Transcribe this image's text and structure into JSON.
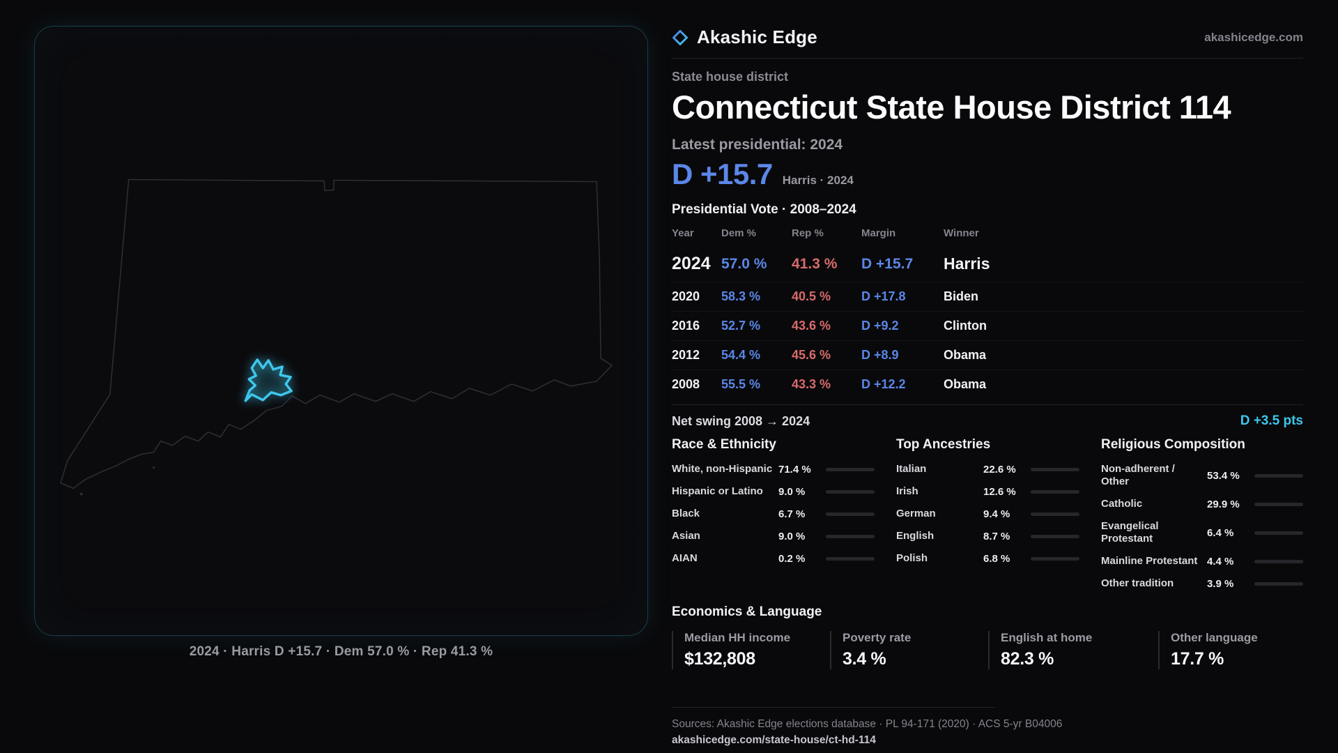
{
  "brand": {
    "name": "Akashic Edge",
    "site": "akashicedge.com"
  },
  "map": {
    "caption": "2024 · Harris D +15.7 · Dem 57.0 % · Rep 41.3 %"
  },
  "page": {
    "kicker": "State house district",
    "title": "Connecticut State House District 114"
  },
  "latest": {
    "label": "Latest presidential: 2024",
    "margin": "D +15.7",
    "sub": "Harris · 2024"
  },
  "vote_table": {
    "title": "Presidential Vote · 2008–2024",
    "columns": {
      "year": "Year",
      "dem": "Dem %",
      "rep": "Rep %",
      "margin": "Margin",
      "winner": "Winner"
    },
    "rows": [
      {
        "year": "2024",
        "dem": "57.0 %",
        "rep": "41.3 %",
        "margin": "D +15.7",
        "winner": "Harris"
      },
      {
        "year": "2020",
        "dem": "58.3 %",
        "rep": "40.5 %",
        "margin": "D +17.8",
        "winner": "Biden"
      },
      {
        "year": "2016",
        "dem": "52.7 %",
        "rep": "43.6 %",
        "margin": "D +9.2",
        "winner": "Clinton"
      },
      {
        "year": "2012",
        "dem": "54.4 %",
        "rep": "45.6 %",
        "margin": "D +8.9",
        "winner": "Obama"
      },
      {
        "year": "2008",
        "dem": "55.5 %",
        "rep": "43.3 %",
        "margin": "D +12.2",
        "winner": "Obama"
      }
    ]
  },
  "swing": {
    "label": "Net swing 2008 → 2024",
    "value": "D +3.5 pts"
  },
  "demographics": [
    {
      "title": "Race & Ethnicity",
      "rows": [
        {
          "label": "White, non-Hispanic",
          "value": "71.4 %",
          "pct": 71.4,
          "color": "#b6b6c0"
        },
        {
          "label": "Hispanic or Latino",
          "value": "9.0 %",
          "pct": 9.0,
          "color": "#dfa13f"
        },
        {
          "label": "Black",
          "value": "6.7 %",
          "pct": 6.7,
          "color": "#7b6ce6"
        },
        {
          "label": "Asian",
          "value": "9.0 %",
          "pct": 9.0,
          "color": "#35c08c"
        },
        {
          "label": "AIAN",
          "value": "0.2 %",
          "pct": 0.2,
          "color": "#9a9aa4"
        }
      ]
    },
    {
      "title": "Top Ancestries",
      "rows": [
        {
          "label": "Italian",
          "value": "22.6 %",
          "pct": 22.6,
          "color": "#a9abb8"
        },
        {
          "label": "Irish",
          "value": "12.6 %",
          "pct": 12.6,
          "color": "#a9abb8"
        },
        {
          "label": "German",
          "value": "9.4 %",
          "pct": 9.4,
          "color": "#a9abb8"
        },
        {
          "label": "English",
          "value": "8.7 %",
          "pct": 8.7,
          "color": "#a9abb8"
        },
        {
          "label": "Polish",
          "value": "6.8 %",
          "pct": 6.8,
          "color": "#a9abb8"
        }
      ]
    },
    {
      "title": "Religious Composition",
      "rows": [
        {
          "label": "Non-adherent / Other",
          "value": "53.4 %",
          "pct": 53.4,
          "color": "#a9abb4"
        },
        {
          "label": "Catholic",
          "value": "29.9 %",
          "pct": 29.9,
          "color": "#d4a940"
        },
        {
          "label": "Evangelical Protestant",
          "value": "6.4 %",
          "pct": 6.4,
          "color": "#d96b6b"
        },
        {
          "label": "Mainline Protestant",
          "value": "4.4 %",
          "pct": 4.4,
          "color": "#5b87e5"
        },
        {
          "label": "Other tradition",
          "value": "3.9 %",
          "pct": 3.9,
          "color": "#9a9aa4"
        }
      ]
    }
  ],
  "economics": {
    "title": "Economics & Language",
    "stats": [
      {
        "label": "Median HH income",
        "value": "$132,808"
      },
      {
        "label": "Poverty rate",
        "value": "3.4 %"
      },
      {
        "label": "English at home",
        "value": "82.3 %"
      },
      {
        "label": "Other language",
        "value": "17.7 %"
      }
    ]
  },
  "footer": {
    "sources": "Sources: Akashic Edge elections database · PL 94-171 (2020) · ACS 5-yr B04006",
    "permalink": "akashicedge.com/state-house/ct-hd-114"
  },
  "colors": {
    "dem": "#5b87e8",
    "rep": "#d96b6b",
    "accent": "#3ec7ed"
  }
}
